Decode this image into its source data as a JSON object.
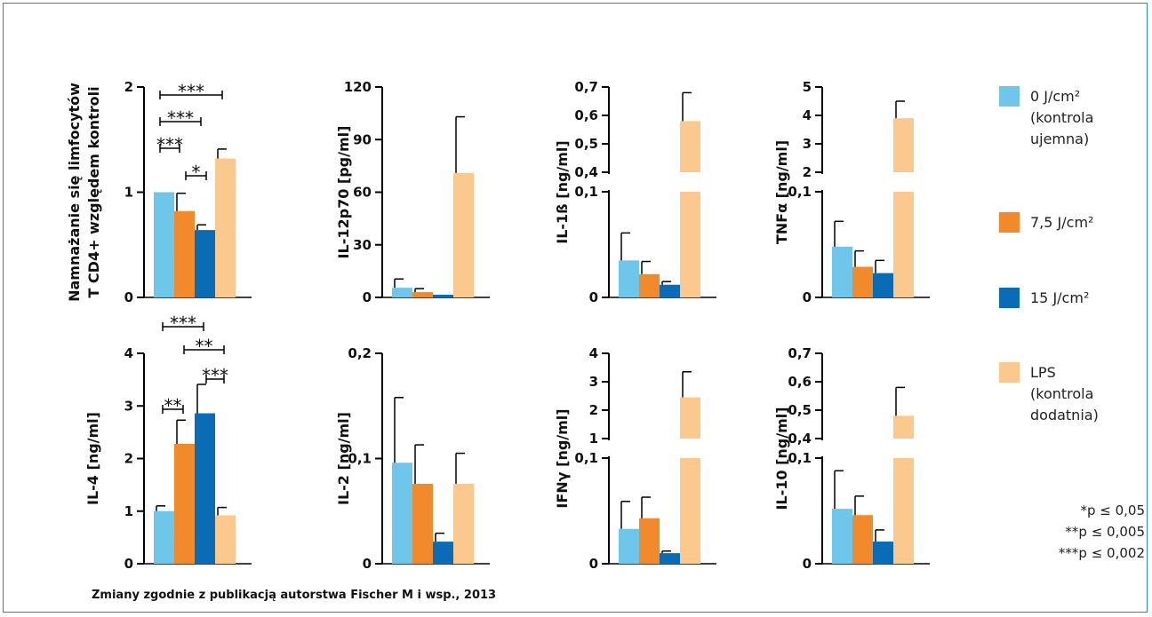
{
  "caption": "Zmiany zgodnie z publikacją autorstwa Fischer M i wsp., 2013",
  "legend": [
    {
      "lines": [
        "0 J/cm²",
        "(kontrola",
        "ujemna)"
      ],
      "color": "#6ec6ea"
    },
    {
      "lines": [
        "7,5 J/cm²"
      ],
      "color": "#f18a2a"
    },
    {
      "lines": [
        "15 J/cm²"
      ],
      "color": "#0a6cb4"
    },
    {
      "lines": [
        "LPS",
        "(kontrola",
        "dodatnia)"
      ],
      "color": "#fbc98d"
    }
  ],
  "pvalues": [
    "*p ≤ 0,05",
    "**p ≤ 0,005",
    "***p ≤ 0,002"
  ],
  "chart_data": [
    {
      "type": "bar",
      "ylabel": [
        "Namnażanie się limfocytów",
        "T CD4+ względem kontroli"
      ],
      "ticks": [
        "0",
        "1",
        "2"
      ],
      "values": [
        1.0,
        0.82,
        0.64,
        1.32
      ],
      "errors": [
        null,
        0.17,
        0.05,
        0.09
      ],
      "significance": [
        "***",
        "***",
        "***",
        "*"
      ]
    },
    {
      "type": "bar",
      "ylabel": [
        "IL-12p70 [pg/ml]"
      ],
      "ticks": [
        "0",
        "30",
        "60",
        "90",
        "120"
      ],
      "values": [
        5.5,
        3,
        1.5,
        71
      ],
      "errors": [
        5,
        2,
        null,
        32
      ]
    },
    {
      "type": "bar",
      "ylabel": [
        "IL-1ß [ng/ml]"
      ],
      "ticks": [
        "0",
        "0,1",
        "0,4",
        "0,5",
        "0,6",
        "0,7"
      ],
      "values": [
        0.035,
        0.022,
        0.012,
        0.58
      ],
      "errors": [
        0.026,
        0.012,
        0.003,
        0.1
      ]
    },
    {
      "type": "bar",
      "ylabel": [
        "TNFα [ng/ml]"
      ],
      "ticks": [
        "0",
        "0,1",
        "2",
        "3",
        "4",
        "5"
      ],
      "values": [
        0.048,
        0.029,
        0.023,
        3.9
      ],
      "errors": [
        0.024,
        0.015,
        0.012,
        0.6
      ]
    },
    {
      "type": "bar",
      "ylabel": [
        "IL-4 [ng/ml]"
      ],
      "ticks": [
        "0",
        "1",
        "2",
        "3",
        "4"
      ],
      "values": [
        1.0,
        2.28,
        2.86,
        0.92
      ],
      "errors": [
        0.1,
        0.45,
        0.55,
        0.15
      ],
      "significance": [
        "***",
        "**",
        "***",
        "**"
      ]
    },
    {
      "type": "bar",
      "ylabel": [
        "IL-2 [ng/ml]"
      ],
      "ticks": [
        "0",
        "0,1",
        "0,2"
      ],
      "values": [
        0.096,
        0.076,
        0.021,
        0.076
      ],
      "errors": [
        0.062,
        0.037,
        0.008,
        0.029
      ]
    },
    {
      "type": "bar",
      "ylabel": [
        "IFNγ [ng/ml]"
      ],
      "ticks": [
        "0",
        "0,1",
        "1",
        "2",
        "3",
        "4"
      ],
      "values": [
        0.033,
        0.043,
        0.01,
        2.45
      ],
      "errors": [
        0.026,
        0.02,
        0.002,
        0.9
      ]
    },
    {
      "type": "bar",
      "ylabel": [
        "IL-10 [ng/ml]"
      ],
      "ticks": [
        "0",
        "0,1",
        "0,4",
        "0,5",
        "0,6",
        "0,7"
      ],
      "values": [
        0.052,
        0.046,
        0.021,
        0.48
      ],
      "errors": [
        0.036,
        0.018,
        0.011,
        0.1
      ]
    }
  ]
}
